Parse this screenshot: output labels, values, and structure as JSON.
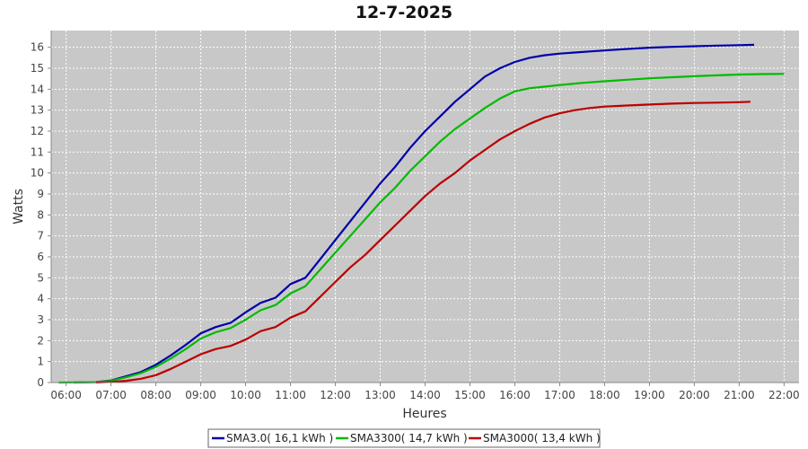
{
  "chart_data": {
    "type": "line",
    "title": "12-7-2025",
    "xlabel": "Heures",
    "ylabel": "Watts",
    "xlim": [
      "05:40",
      "22:20"
    ],
    "ylim": [
      0,
      16.8
    ],
    "x_ticks": [
      "06:00",
      "07:00",
      "08:00",
      "09:00",
      "10:00",
      "11:00",
      "12:00",
      "13:00",
      "14:00",
      "15:00",
      "16:00",
      "17:00",
      "18:00",
      "19:00",
      "20:00",
      "21:00",
      "22:00"
    ],
    "y_ticks": [
      0,
      1,
      2,
      3,
      4,
      5,
      6,
      7,
      8,
      9,
      10,
      11,
      12,
      13,
      14,
      15,
      16
    ],
    "grid": true,
    "plot_background": "#c8c8c8",
    "legend_position": "bottom",
    "series": [
      {
        "name": "SMA3.0",
        "legend": "SMA3.0( 16,1 kWh )",
        "color": "#0000aa",
        "x": [
          "06:10",
          "06:40",
          "07:00",
          "07:20",
          "07:40",
          "08:00",
          "08:20",
          "08:40",
          "09:00",
          "09:20",
          "09:40",
          "10:00",
          "10:20",
          "10:40",
          "11:00",
          "11:20",
          "11:40",
          "12:00",
          "12:20",
          "12:40",
          "13:00",
          "13:20",
          "13:40",
          "14:00",
          "14:20",
          "14:40",
          "15:00",
          "15:20",
          "15:40",
          "16:00",
          "16:20",
          "16:40",
          "17:00",
          "17:20",
          "17:40",
          "18:00",
          "18:30",
          "19:00",
          "19:30",
          "20:00",
          "20:30",
          "21:00",
          "21:20"
        ],
        "values": [
          0,
          0.02,
          0.1,
          0.3,
          0.5,
          0.85,
          1.3,
          1.8,
          2.35,
          2.65,
          2.85,
          3.35,
          3.8,
          4.05,
          4.7,
          5.0,
          5.9,
          6.8,
          7.7,
          8.6,
          9.5,
          10.3,
          11.2,
          12.0,
          12.7,
          13.4,
          14.0,
          14.6,
          15.0,
          15.3,
          15.5,
          15.62,
          15.7,
          15.75,
          15.8,
          15.85,
          15.92,
          15.98,
          16.02,
          16.05,
          16.08,
          16.1,
          16.12
        ]
      },
      {
        "name": "SMA3300",
        "legend": "SMA3300( 14,7 kWh )",
        "color": "#00bb00",
        "x": [
          "05:50",
          "06:40",
          "07:00",
          "07:20",
          "07:40",
          "08:00",
          "08:20",
          "08:40",
          "09:00",
          "09:20",
          "09:40",
          "10:00",
          "10:20",
          "10:40",
          "11:00",
          "11:20",
          "11:40",
          "12:00",
          "12:20",
          "12:40",
          "13:00",
          "13:20",
          "13:40",
          "14:00",
          "14:20",
          "14:40",
          "15:00",
          "15:20",
          "15:40",
          "16:00",
          "16:20",
          "16:40",
          "17:00",
          "17:30",
          "18:00",
          "18:30",
          "19:00",
          "19:30",
          "20:00",
          "20:30",
          "21:00",
          "21:30",
          "22:00"
        ],
        "values": [
          0,
          0.02,
          0.08,
          0.25,
          0.45,
          0.75,
          1.15,
          1.6,
          2.1,
          2.4,
          2.6,
          3.0,
          3.45,
          3.7,
          4.25,
          4.6,
          5.4,
          6.2,
          7.0,
          7.8,
          8.6,
          9.3,
          10.1,
          10.8,
          11.5,
          12.1,
          12.6,
          13.1,
          13.55,
          13.9,
          14.05,
          14.12,
          14.2,
          14.3,
          14.38,
          14.45,
          14.52,
          14.57,
          14.62,
          14.66,
          14.7,
          14.72,
          14.73
        ]
      },
      {
        "name": "SMA3000",
        "legend": "SMA3000( 13,4 kWh )",
        "color": "#bb0000",
        "x": [
          "06:40",
          "07:00",
          "07:20",
          "07:40",
          "08:00",
          "08:20",
          "08:40",
          "09:00",
          "09:20",
          "09:40",
          "10:00",
          "10:20",
          "10:40",
          "11:00",
          "11:20",
          "11:40",
          "12:00",
          "12:20",
          "12:40",
          "13:00",
          "13:20",
          "13:40",
          "14:00",
          "14:20",
          "14:40",
          "15:00",
          "15:20",
          "15:40",
          "16:00",
          "16:20",
          "16:40",
          "17:00",
          "17:20",
          "17:40",
          "18:00",
          "18:30",
          "19:00",
          "19:30",
          "20:00",
          "20:30",
          "21:00",
          "21:15"
        ],
        "values": [
          0,
          0.03,
          0.08,
          0.18,
          0.35,
          0.65,
          1.0,
          1.35,
          1.6,
          1.75,
          2.05,
          2.45,
          2.65,
          3.1,
          3.4,
          4.1,
          4.8,
          5.5,
          6.1,
          6.8,
          7.5,
          8.2,
          8.9,
          9.5,
          10.0,
          10.6,
          11.1,
          11.6,
          12.0,
          12.35,
          12.65,
          12.85,
          13.0,
          13.1,
          13.17,
          13.22,
          13.27,
          13.31,
          13.34,
          13.36,
          13.38,
          13.4
        ]
      }
    ]
  }
}
